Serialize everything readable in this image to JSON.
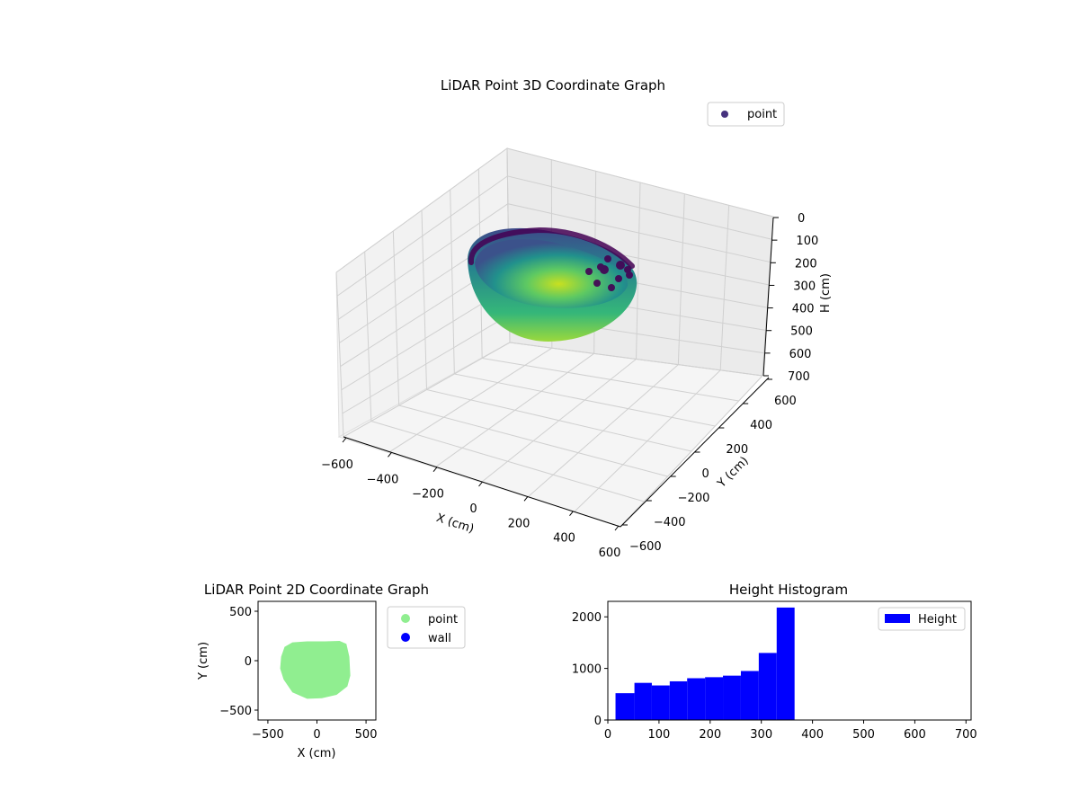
{
  "chart_data": [
    {
      "type": "scatter",
      "title": "LiDAR Point 3D Coordinate Graph",
      "xlabel": "X (cm)",
      "ylabel": "Y (cm)",
      "zlabel": "H (cm)",
      "xlim": [
        -600,
        600
      ],
      "ylim": [
        -600,
        600
      ],
      "zlim": [
        700,
        0
      ],
      "x_ticks": [
        "−600",
        "−400",
        "−200",
        "0",
        "200",
        "400",
        "600"
      ],
      "y_ticks": [
        "−600",
        "−400",
        "−200",
        "0",
        "200",
        "400",
        "600"
      ],
      "z_ticks": [
        "0",
        "100",
        "200",
        "300",
        "400",
        "500",
        "600",
        "700"
      ],
      "legend": [
        "point"
      ],
      "legend_position": "top-right",
      "colormap": "viridis",
      "grid": true,
      "colors": {
        "legend_marker": "#46327e",
        "pane": "#f2f2f2"
      }
    },
    {
      "type": "scatter",
      "title": "LiDAR Point 2D Coordinate Graph",
      "xlabel": "X (cm)",
      "ylabel": "Y (cm)",
      "xlim": [
        -600,
        600
      ],
      "ylim": [
        -600,
        600
      ],
      "x_ticks": [
        "−500",
        "0",
        "500"
      ],
      "y_ticks": [
        "−500",
        "0",
        "500"
      ],
      "legend": [
        "point",
        "wall"
      ],
      "legend_position": "outside-right",
      "footprint_outline": [
        [
          -340,
          -190
        ],
        [
          -250,
          -320
        ],
        [
          -100,
          -385
        ],
        [
          50,
          -380
        ],
        [
          200,
          -345
        ],
        [
          310,
          -260
        ],
        [
          340,
          -150
        ],
        [
          330,
          40
        ],
        [
          300,
          170
        ],
        [
          230,
          200
        ],
        [
          80,
          195
        ],
        [
          -100,
          195
        ],
        [
          -250,
          185
        ],
        [
          -330,
          140
        ],
        [
          -365,
          40
        ],
        [
          -375,
          -80
        ]
      ],
      "colors": {
        "point": "#90ee90",
        "wall": "#0000ff"
      }
    },
    {
      "type": "bar",
      "title": "Height Histogram",
      "legend": [
        "Height"
      ],
      "legend_position": "top-right",
      "xlim": [
        0,
        710
      ],
      "ylim": [
        0,
        2300
      ],
      "x_ticks": [
        "0",
        "100",
        "200",
        "300",
        "400",
        "500",
        "600",
        "700"
      ],
      "y_ticks": [
        "0",
        "1000",
        "2000"
      ],
      "bin_edges": [
        15,
        52,
        86,
        121,
        155,
        190,
        225,
        260,
        295,
        330,
        365
      ],
      "values": [
        520,
        720,
        670,
        750,
        810,
        830,
        860,
        950,
        1300,
        2180
      ],
      "colors": {
        "bar": "#0000ff"
      }
    }
  ]
}
